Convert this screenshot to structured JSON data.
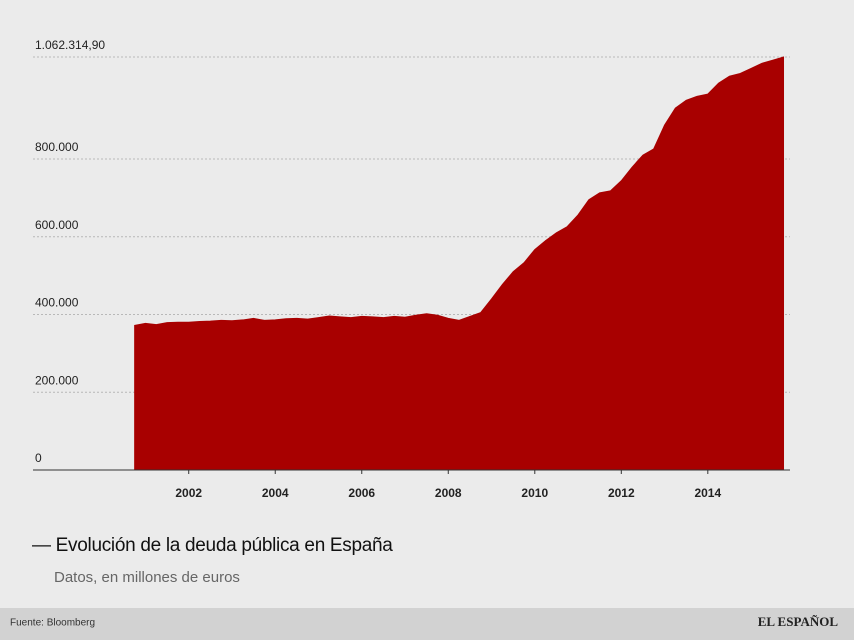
{
  "chart_data": {
    "type": "area",
    "title": "— Evolución de la deuda pública en España",
    "subtitle": "Datos, en millones de euros",
    "color": "#a80000",
    "grid": true,
    "x": [
      2000.75,
      2001,
      2001.25,
      2001.5,
      2001.75,
      2002,
      2002.25,
      2002.5,
      2002.75,
      2003,
      2003.25,
      2003.5,
      2003.75,
      2004,
      2004.25,
      2004.5,
      2004.75,
      2005,
      2005.25,
      2005.5,
      2005.75,
      2006,
      2006.25,
      2006.5,
      2006.75,
      2007,
      2007.25,
      2007.5,
      2007.75,
      2008,
      2008.25,
      2008.5,
      2008.75,
      2009,
      2009.25,
      2009.5,
      2009.75,
      2010,
      2010.25,
      2010.5,
      2010.75,
      2011,
      2011.25,
      2011.5,
      2011.75,
      2012,
      2012.25,
      2012.5,
      2012.75,
      2013,
      2013.25,
      2013.5,
      2013.75,
      2014,
      2014.25,
      2014.5,
      2014.75,
      2015,
      2015.25,
      2015.5,
      2015.75
    ],
    "values": [
      372000,
      377000,
      374000,
      379000,
      380000,
      380000,
      382000,
      383000,
      385000,
      384000,
      386000,
      390000,
      385000,
      386000,
      389000,
      390000,
      388000,
      392000,
      396000,
      394000,
      392000,
      395000,
      394000,
      392000,
      395000,
      393000,
      398000,
      402000,
      398000,
      390000,
      385000,
      395000,
      405000,
      440000,
      477000,
      510000,
      533000,
      567000,
      590000,
      610000,
      626000,
      656000,
      695000,
      713000,
      718000,
      744000,
      779000,
      810000,
      826000,
      887000,
      931000,
      951000,
      961000,
      967000,
      995000,
      1013000,
      1020000,
      1033000,
      1046000,
      1054000,
      1062314.9
    ],
    "xlim": [
      1998.4,
      2015.9
    ],
    "xticks": [
      2002,
      2004,
      2006,
      2008,
      2010,
      2012,
      2014
    ],
    "ylim": [
      0,
      1062314.9
    ],
    "yticks": [
      0,
      {
        "value": 200000,
        "label": "200.000"
      },
      {
        "value": 400000,
        "label": "400.000"
      },
      {
        "value": 600000,
        "label": "600.000"
      },
      {
        "value": 800000,
        "label": "800.000"
      },
      {
        "value": 1062314.9,
        "label": "1.062.314,90"
      }
    ]
  },
  "footer": {
    "source": "Fuente: Bloomberg",
    "brand": "EL ESPAÑOL"
  }
}
